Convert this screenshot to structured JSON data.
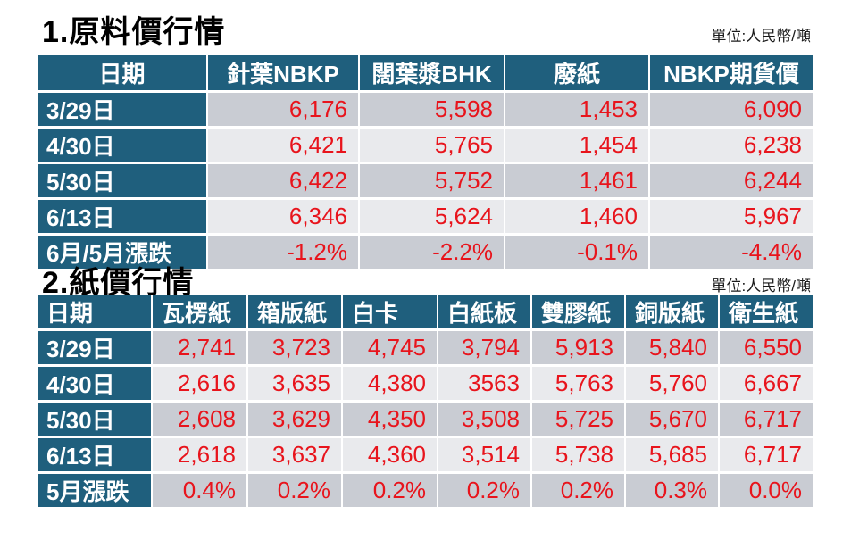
{
  "colors": {
    "header_teal": "#1F5F7D",
    "row_dark_gray": "#C9CCD3",
    "row_light_gray": "#E9EAED",
    "value_red": "#E8141C",
    "grid_white": "#ffffff",
    "title_black": "#000000"
  },
  "table1": {
    "title": "1.原料價行情",
    "unit": "單位:人民幣/噸",
    "columns": [
      "日期",
      "針葉NBKP",
      "闊葉漿BHK",
      "廢紙",
      "NBKP期貨價"
    ],
    "rows": [
      {
        "date": "3/29日",
        "values": [
          "6,176",
          "5,598",
          "1,453",
          "6,090"
        ]
      },
      {
        "date": "4/30日",
        "values": [
          "6,421",
          "5,765",
          "1,454",
          "6,238"
        ]
      },
      {
        "date": "5/30日",
        "values": [
          "6,422",
          "5,752",
          "1,461",
          "6,244"
        ]
      },
      {
        "date": "6/13日",
        "values": [
          "6,346",
          "5,624",
          "1,460",
          "5,967"
        ]
      },
      {
        "date": "6月/5月漲跌",
        "values": [
          "-1.2%",
          "-2.2%",
          "-0.1%",
          "-4.4%"
        ]
      }
    ]
  },
  "table2": {
    "title": "2.紙價行情",
    "unit": "單位:人民幣/噸",
    "columns": [
      "日期",
      "瓦楞紙",
      "箱版紙",
      "白卡",
      "白紙板",
      "雙膠紙",
      "銅版紙",
      "衛生紙"
    ],
    "rows": [
      {
        "date": "3/29日",
        "values": [
          "2,741",
          "3,723",
          "4,745",
          "3,794",
          "5,913",
          "5,840",
          "6,550"
        ]
      },
      {
        "date": "4/30日",
        "values": [
          "2,616",
          "3,635",
          "4,380",
          "3563",
          "5,763",
          "5,760",
          "6,667"
        ]
      },
      {
        "date": "5/30日",
        "values": [
          "2,608",
          "3,629",
          "4,350",
          "3,508",
          "5,725",
          "5,670",
          "6,717"
        ]
      },
      {
        "date": "6/13日",
        "values": [
          "2,618",
          "3,637",
          "4,360",
          "3,514",
          "5,738",
          "5,685",
          "6,717"
        ]
      },
      {
        "date": "5月漲跌",
        "values": [
          "0.4%",
          "0.2%",
          "0.2%",
          "0.2%",
          "0.2%",
          "0.3%",
          "0.0%"
        ]
      }
    ]
  }
}
